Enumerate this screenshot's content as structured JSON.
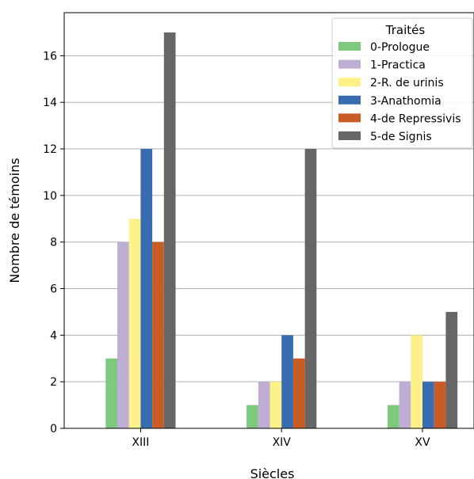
{
  "chart_data": {
    "type": "bar",
    "categories": [
      "XIII",
      "XIV",
      "XV"
    ],
    "xlabel": "Siècles",
    "ylabel": "Nombre de témoins",
    "ylim": [
      0,
      17.85
    ],
    "yticks": [
      "0",
      "2",
      "4",
      "6",
      "8",
      "10",
      "12",
      "14",
      "16"
    ],
    "grid": "horizontal",
    "legend": {
      "title": "Traités",
      "position": "top-right"
    },
    "series": [
      {
        "name": "0-Prologue",
        "color": "#7fc97f",
        "values": [
          3,
          1,
          1
        ]
      },
      {
        "name": "1-Practica",
        "color": "#beaed4",
        "values": [
          8,
          2,
          2
        ]
      },
      {
        "name": "2-R. de urinis",
        "color": "#fdf18a",
        "values": [
          9,
          2,
          4
        ]
      },
      {
        "name": "3-Anathomia",
        "color": "#386cb0",
        "values": [
          12,
          4,
          2
        ]
      },
      {
        "name": "4-de Repressivis",
        "color": "#c95b24",
        "values": [
          8,
          3,
          2
        ]
      },
      {
        "name": "5-de Signis",
        "color": "#666666",
        "values": [
          17,
          12,
          5
        ]
      }
    ]
  }
}
